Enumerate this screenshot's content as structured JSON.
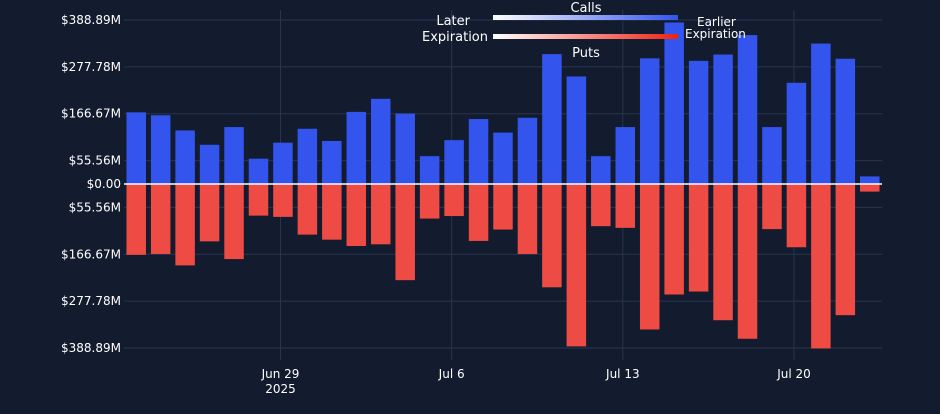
{
  "chart_data": {
    "type": "bar",
    "stacking": "diverging",
    "y_axis": {
      "ylim": [
        -400,
        400
      ],
      "unit": "M",
      "ticks": [
        388.89,
        277.78,
        166.67,
        55.56,
        0,
        -55.56,
        -166.67,
        -277.78,
        -388.89
      ],
      "tick_labels": [
        "$388.89M",
        "$277.78M",
        "$166.67M",
        "$55.56M",
        "$0.00",
        "$55.56M",
        "$166.67M",
        "$277.78M",
        "$388.89M"
      ]
    },
    "x_axis": {
      "ticks": [
        {
          "label": "Jun 29",
          "sublabel": "2025",
          "position": 6.4
        },
        {
          "label": "Jul 6",
          "sublabel": "",
          "position": 13.4
        },
        {
          "label": "Jul 13",
          "sublabel": "",
          "position": 20.4
        },
        {
          "label": "Jul 20",
          "sublabel": "",
          "position": 27.4
        }
      ]
    },
    "categories": [
      "1",
      "2",
      "3",
      "4",
      "5",
      "6",
      "7",
      "8",
      "9",
      "10",
      "11",
      "12",
      "13",
      "14",
      "15",
      "16",
      "17",
      "18",
      "19",
      "20",
      "21",
      "22",
      "23",
      "24",
      "25",
      "26",
      "27",
      "28",
      "29",
      "30",
      "31"
    ],
    "series": [
      {
        "name": "Calls",
        "color": "#3355ee",
        "values": [
          170,
          163,
          127,
          93,
          135,
          60,
          98,
          131,
          102,
          171,
          202,
          167,
          66,
          104,
          154,
          122,
          157,
          308,
          255,
          66,
          135,
          298,
          383,
          292,
          307,
          353,
          135,
          240,
          333,
          297,
          18
        ]
      },
      {
        "name": "Puts",
        "color": "#ee4b44",
        "values": [
          -168,
          -166,
          -193,
          -136,
          -178,
          -75,
          -78,
          -120,
          -132,
          -147,
          -143,
          -228,
          -82,
          -76,
          -135,
          -108,
          -166,
          -245,
          -385,
          -100,
          -104,
          -345,
          -262,
          -255,
          -323,
          -367,
          -107,
          -150,
          -390,
          -311,
          -18
        ]
      }
    ],
    "legend": {
      "placement": "top-center",
      "calls_title": "Calls",
      "puts_title": "Puts",
      "left_label_top": "Later",
      "left_label_bottom": "Expiration",
      "right_label_top": "Earlier",
      "right_label_bottom": "Expiration",
      "calls_gradient": [
        "#ffffff",
        "#3355ee"
      ],
      "puts_gradient": [
        "#ffffff",
        "#ee2211"
      ]
    },
    "grid": true,
    "colors": {
      "background": "#131b2e",
      "grid": "#28344e",
      "zero_line": "#ffffff"
    }
  }
}
